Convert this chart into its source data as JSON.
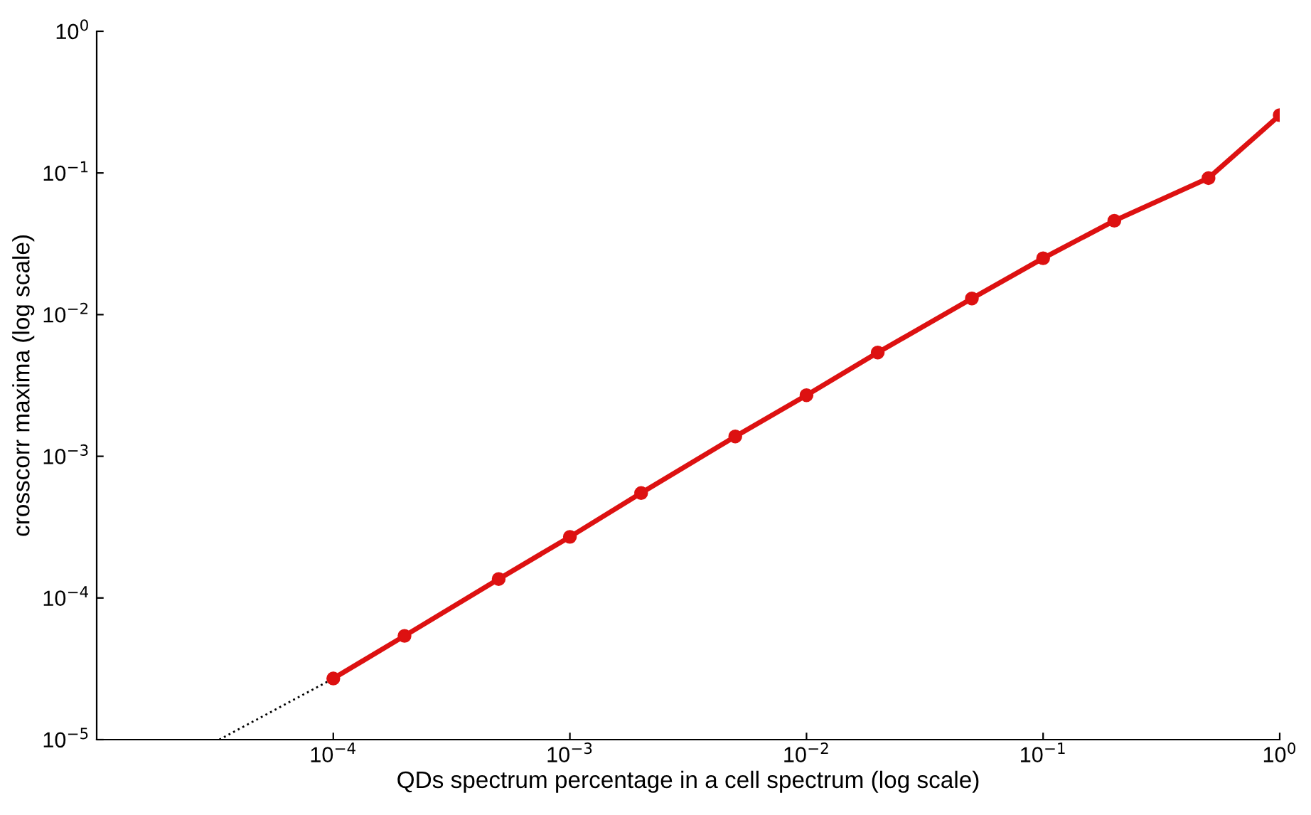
{
  "chart_data": {
    "type": "line",
    "xlabel": "QDs spectrum percentage in a cell spectrum (log scale)",
    "ylabel": "crosscorr maxima (log scale)",
    "log": "xy",
    "grid": false,
    "xlim": [
      1e-05,
      1
    ],
    "ylim": [
      1e-05,
      1
    ],
    "xticks": [
      {
        "value": 0.0001,
        "label": "10$^{−4}$"
      },
      {
        "value": 0.001,
        "label": "10$^{−3}$"
      },
      {
        "value": 0.01,
        "label": "10$^{−2}$"
      },
      {
        "value": 0.1,
        "label": "10$^{−1}$"
      },
      {
        "value": 1,
        "label": "10$^{0}$"
      }
    ],
    "yticks": [
      {
        "value": 1e-05,
        "label": "10$^{−5}$"
      },
      {
        "value": 0.0001,
        "label": "10$^{−4}$"
      },
      {
        "value": 0.001,
        "label": "10$^{−3}$"
      },
      {
        "value": 0.01,
        "label": "10$^{−2}$"
      },
      {
        "value": 0.1,
        "label": "10$^{−1}$"
      },
      {
        "value": 1,
        "label": "10$^{0}$"
      }
    ],
    "series": [
      {
        "color": "#000000",
        "line_style": "dotted",
        "marker": "none",
        "x": [
          3.3e-05,
          0.0001
        ],
        "values": [
          1e-05,
          2.7e-05
        ]
      },
      {
        "color": "#dd1111",
        "line_style": "solid",
        "marker": "circle",
        "x": [
          0.0001,
          0.0002,
          0.0005,
          0.001,
          0.002,
          0.005,
          0.01,
          0.02,
          0.05,
          0.1,
          0.2,
          0.5,
          1
        ],
        "values": [
          2.7e-05,
          5.4e-05,
          0.000136,
          0.00027,
          0.00055,
          0.00138,
          0.0027,
          0.0054,
          0.013,
          0.025,
          0.046,
          0.092,
          0.256
        ]
      }
    ]
  }
}
